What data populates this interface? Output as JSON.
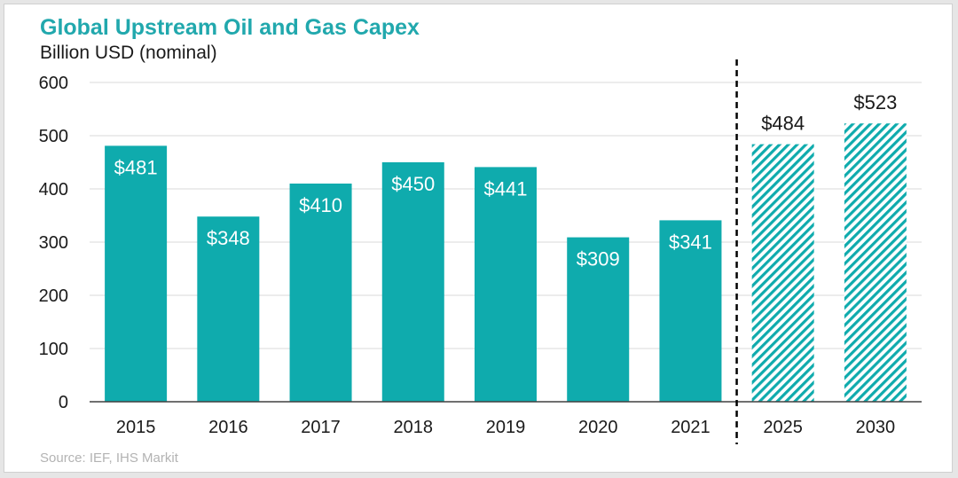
{
  "chart_data": {
    "type": "bar",
    "title": "Global Upstream Oil and Gas Capex",
    "subtitle": "Billion USD (nominal)",
    "categories": [
      "2015",
      "2016",
      "2017",
      "2018",
      "2019",
      "2020",
      "2021",
      "2025",
      "2030"
    ],
    "values": [
      481,
      348,
      410,
      450,
      441,
      309,
      341,
      484,
      523
    ],
    "data_labels": [
      "$481",
      "$348",
      "$410",
      "$450",
      "$441",
      "$309",
      "$341",
      "$484",
      "$523"
    ],
    "forecast": [
      false,
      false,
      false,
      false,
      false,
      false,
      false,
      true,
      true
    ],
    "ylim": [
      0,
      600
    ],
    "yticks": [
      0,
      100,
      200,
      300,
      400,
      500,
      600
    ],
    "grid": true,
    "forecast_divider_after": "2021",
    "source": "Source: IEF, IHS Markit"
  },
  "colors": {
    "bar": "#0fabad",
    "title": "#21a8ad",
    "grid": "#d9d9d9",
    "axis": "#404040"
  }
}
